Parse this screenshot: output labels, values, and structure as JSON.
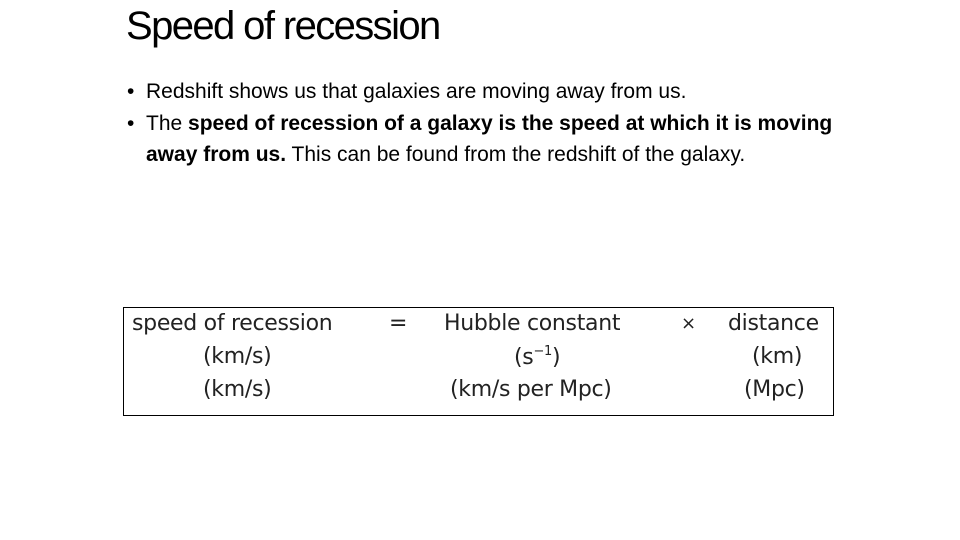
{
  "slide": {
    "title": "Speed of recession",
    "bullets": [
      {
        "marker": "•",
        "text": "Redshift shows us that galaxies are moving away from us."
      },
      {
        "marker": "•",
        "prefix": "The ",
        "bold": "speed of recession of a galaxy is the speed at which it is moving away from us.",
        "suffix": " This can be found from the redshift of the galaxy."
      }
    ]
  },
  "formula": {
    "row1": {
      "lhs": "speed of recession",
      "equals": "=",
      "term1": "Hubble constant",
      "times": "×",
      "term2": "distance"
    },
    "row2": {
      "lhs_unit": "(km/s)",
      "term1_unit_base": "(s",
      "term1_unit_exp": "−1",
      "term1_unit_close": ")",
      "term2_unit": "(km)"
    },
    "row3": {
      "lhs_unit": "(km/s)",
      "term1_unit": "(km/s per Mpc)",
      "term2_unit": "(Mpc)"
    }
  }
}
